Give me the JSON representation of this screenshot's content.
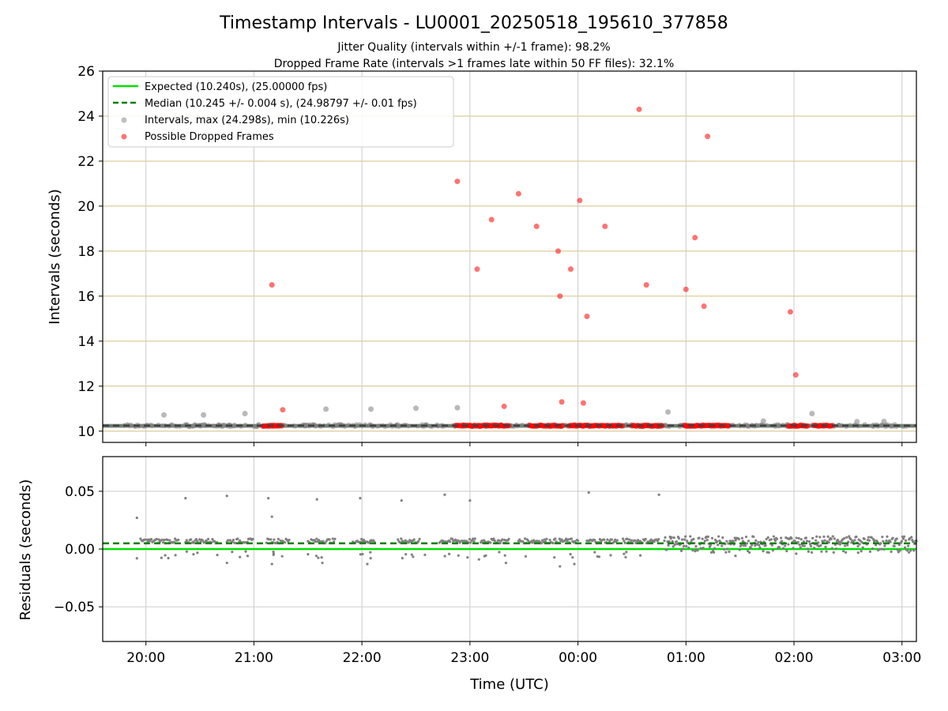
{
  "chart_data": {
    "type": "scatter",
    "title": "Timestamp Intervals - LU0001_20250518_195610_377858",
    "subtitle_lines": [
      "Jitter Quality (intervals within +/-1 frame): 98.2%",
      "Dropped Frame Rate (intervals >1 frames late within 50 FF files): 32.1%"
    ],
    "xlabel": "Time (UTC)",
    "x_ticks": [
      "20:00",
      "21:00",
      "22:00",
      "23:00",
      "00:00",
      "01:00",
      "02:00",
      "03:00"
    ],
    "x_tick_minutes": [
      0,
      60,
      120,
      180,
      240,
      300,
      360,
      420
    ],
    "xlim_minutes": [
      -24,
      428
    ],
    "top_panel": {
      "ylabel": "Intervals (seconds)",
      "ylim": [
        9.5,
        26
      ],
      "y_ticks": [
        10,
        12,
        14,
        16,
        18,
        20,
        22,
        24,
        26
      ],
      "expected": 10.24,
      "median": 10.245,
      "legend": {
        "placement": "top-left",
        "expected": "Expected (10.240s), (25.00000 fps)",
        "median": "Median (10.245 +/- 0.004 s), (24.98797 +/- 0.01 fps)",
        "intervals": "Intervals, max (24.298s), min (10.226s)",
        "dropped": "Possible Dropped Frames"
      },
      "interval_outliers_min_y": [
        [
          10,
          10.72
        ],
        [
          32,
          10.72
        ],
        [
          55,
          10.78
        ],
        [
          100,
          10.98
        ],
        [
          125,
          10.98
        ],
        [
          150,
          11.02
        ],
        [
          173,
          11.04
        ],
        [
          290,
          10.85
        ],
        [
          343,
          10.45
        ],
        [
          370,
          10.78
        ],
        [
          395,
          10.42
        ],
        [
          410,
          10.43
        ]
      ],
      "dropped_points": [
        [
          70,
          16.5
        ],
        [
          76,
          10.95
        ],
        [
          173,
          21.1
        ],
        [
          184,
          17.2
        ],
        [
          192,
          19.4
        ],
        [
          199,
          11.1
        ],
        [
          207,
          20.55
        ],
        [
          217,
          19.1
        ],
        [
          229,
          18.0
        ],
        [
          230,
          16.0
        ],
        [
          231,
          11.3
        ],
        [
          236,
          17.2
        ],
        [
          241,
          20.25
        ],
        [
          243,
          11.25
        ],
        [
          245,
          15.1
        ],
        [
          255,
          19.1
        ],
        [
          274,
          24.3
        ],
        [
          278,
          16.5
        ],
        [
          300,
          16.3
        ],
        [
          305,
          18.6
        ],
        [
          310,
          15.55
        ],
        [
          312,
          23.1
        ],
        [
          358,
          15.3
        ],
        [
          361,
          12.5
        ]
      ],
      "dropped_clusters_min": [
        [
          65,
          76
        ],
        [
          172,
          202
        ],
        [
          213,
          232
        ],
        [
          235,
          265
        ],
        [
          270,
          287
        ],
        [
          299,
          324
        ],
        [
          357,
          368
        ],
        [
          371,
          382
        ]
      ],
      "dropped_cluster_y": 10.24,
      "band_y": [
        10.15,
        10.32
      ]
    },
    "bottom_panel": {
      "ylabel": "Residuals (seconds)",
      "ylim": [
        -0.08,
        0.08
      ],
      "y_ticks": [
        0.05,
        0.0,
        -0.05
      ],
      "y_tick_labels": [
        "0.05",
        "0.00",
        "−0.05"
      ],
      "expected": 0.0,
      "median": 0.005,
      "outliers": [
        [
          -5,
          0.027
        ],
        [
          -5,
          -0.008
        ],
        [
          22,
          0.044
        ],
        [
          45,
          0.046
        ],
        [
          68,
          0.044
        ],
        [
          70,
          0.028
        ],
        [
          95,
          0.043
        ],
        [
          119,
          0.044
        ],
        [
          142,
          0.042
        ],
        [
          166,
          0.047
        ],
        [
          180,
          0.042
        ],
        [
          246,
          0.049
        ],
        [
          285,
          0.047
        ],
        [
          45,
          -0.012
        ],
        [
          98,
          -0.012
        ],
        [
          123,
          -0.013
        ],
        [
          155,
          -0.005
        ],
        [
          200,
          -0.012
        ],
        [
          230,
          -0.015
        ],
        [
          238,
          -0.013
        ],
        [
          185,
          -0.009
        ],
        [
          70,
          -0.013
        ]
      ],
      "segments_min": [
        [
          -3,
          18
        ],
        [
          22,
          40
        ],
        [
          45,
          60
        ],
        [
          67,
          80
        ],
        [
          90,
          105
        ],
        [
          115,
          127
        ],
        [
          140,
          152
        ],
        [
          163,
          183
        ],
        [
          186,
          202
        ],
        [
          207,
          240
        ],
        [
          245,
          262
        ],
        [
          265,
          285
        ],
        [
          288,
          428
        ]
      ]
    },
    "colors": {
      "expected": "#00e000",
      "median": "#008000",
      "interval": "#808080",
      "dropped": "#ff0000",
      "hgrid_top": "#d4bf80",
      "grid": "#cccccc",
      "median_band": "#6e6e6e"
    }
  }
}
